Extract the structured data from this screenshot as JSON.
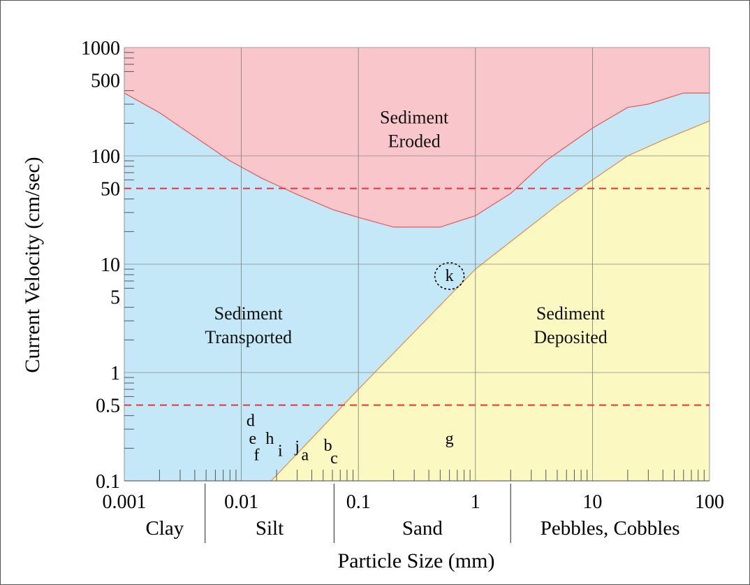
{
  "chart_data": {
    "type": "area",
    "xlabel": "Particle Size (mm)",
    "ylabel": "Current Velocity (cm/sec)",
    "x_scale": "log",
    "y_scale": "log",
    "xlim": [
      0.001,
      100
    ],
    "ylim": [
      0.1,
      1000
    ],
    "x_ticks": [
      {
        "value": 0.001,
        "label": "0.001"
      },
      {
        "value": 0.01,
        "label": "0.01"
      },
      {
        "value": 0.1,
        "label": "0.1"
      },
      {
        "value": 1,
        "label": "1"
      },
      {
        "value": 10,
        "label": "10"
      },
      {
        "value": 100,
        "label": "100"
      }
    ],
    "y_ticks": [
      {
        "value": 1000,
        "label": "1000"
      },
      {
        "value": 500,
        "label": "500"
      },
      {
        "value": 100,
        "label": "100"
      },
      {
        "value": 50,
        "label": "50"
      },
      {
        "value": 10,
        "label": "10"
      },
      {
        "value": 5,
        "label": "5"
      },
      {
        "value": 1,
        "label": "1"
      },
      {
        "value": 0.5,
        "label": "0.5"
      },
      {
        "value": 0.1,
        "label": "0.1"
      }
    ],
    "grid": true,
    "reference_lines": [
      {
        "axis": "y",
        "value": 50,
        "style": "dashed",
        "color": "#e8333b"
      },
      {
        "axis": "y",
        "value": 0.5,
        "style": "dashed",
        "color": "#e8333b"
      }
    ],
    "erosion_curve": {
      "x": [
        0.001,
        0.002,
        0.004,
        0.008,
        0.015,
        0.03,
        0.06,
        0.1,
        0.2,
        0.5,
        1,
        2,
        4,
        10,
        20,
        30,
        60,
        100
      ],
      "y": [
        380,
        250,
        150,
        90,
        62,
        44,
        32,
        27,
        22,
        22,
        28,
        45,
        90,
        180,
        280,
        300,
        380,
        380
      ]
    },
    "deposition_curve": {
      "x": [
        0.018,
        0.1,
        1,
        5,
        10,
        20,
        40,
        100
      ],
      "y": [
        0.1,
        0.7,
        9,
        35,
        60,
        100,
        140,
        210
      ]
    },
    "regions": [
      {
        "name": "eroded",
        "label_lines": [
          "Sediment",
          "Eroded"
        ],
        "color": "#f9c6cb",
        "anchor": [
          0.3,
          200
        ]
      },
      {
        "name": "transported",
        "label_lines": [
          "Sediment",
          "Transported"
        ],
        "color": "#c4e8f7",
        "anchor": [
          0.0115,
          3.1
        ]
      },
      {
        "name": "deposited",
        "label_lines": [
          "Sediment",
          "Deposited"
        ],
        "color": "#fcf8c2",
        "anchor": [
          6.5,
          3.1
        ]
      }
    ],
    "size_classes": [
      {
        "label": "Clay",
        "min": 0.001,
        "max": 0.0049
      },
      {
        "label": "Silt",
        "min": 0.0049,
        "max": 0.062
      },
      {
        "label": "Sand",
        "min": 0.062,
        "max": 2
      },
      {
        "label": "Pebbles, Cobbles",
        "min": 2,
        "max": 100
      }
    ],
    "sample_points": [
      {
        "label": "a",
        "x": 0.035,
        "y": 0.155
      },
      {
        "label": "b",
        "x": 0.055,
        "y": 0.19
      },
      {
        "label": "c",
        "x": 0.062,
        "y": 0.145
      },
      {
        "label": "d",
        "x": 0.012,
        "y": 0.32
      },
      {
        "label": "e",
        "x": 0.0125,
        "y": 0.22
      },
      {
        "label": "f",
        "x": 0.0135,
        "y": 0.155
      },
      {
        "label": "g",
        "x": 0.6,
        "y": 0.22
      },
      {
        "label": "h",
        "x": 0.0175,
        "y": 0.22
      },
      {
        "label": "i",
        "x": 0.0215,
        "y": 0.17
      },
      {
        "label": "j",
        "x": 0.03,
        "y": 0.185
      },
      {
        "label": "k",
        "x": 0.6,
        "y": 7,
        "circled": true
      }
    ]
  }
}
